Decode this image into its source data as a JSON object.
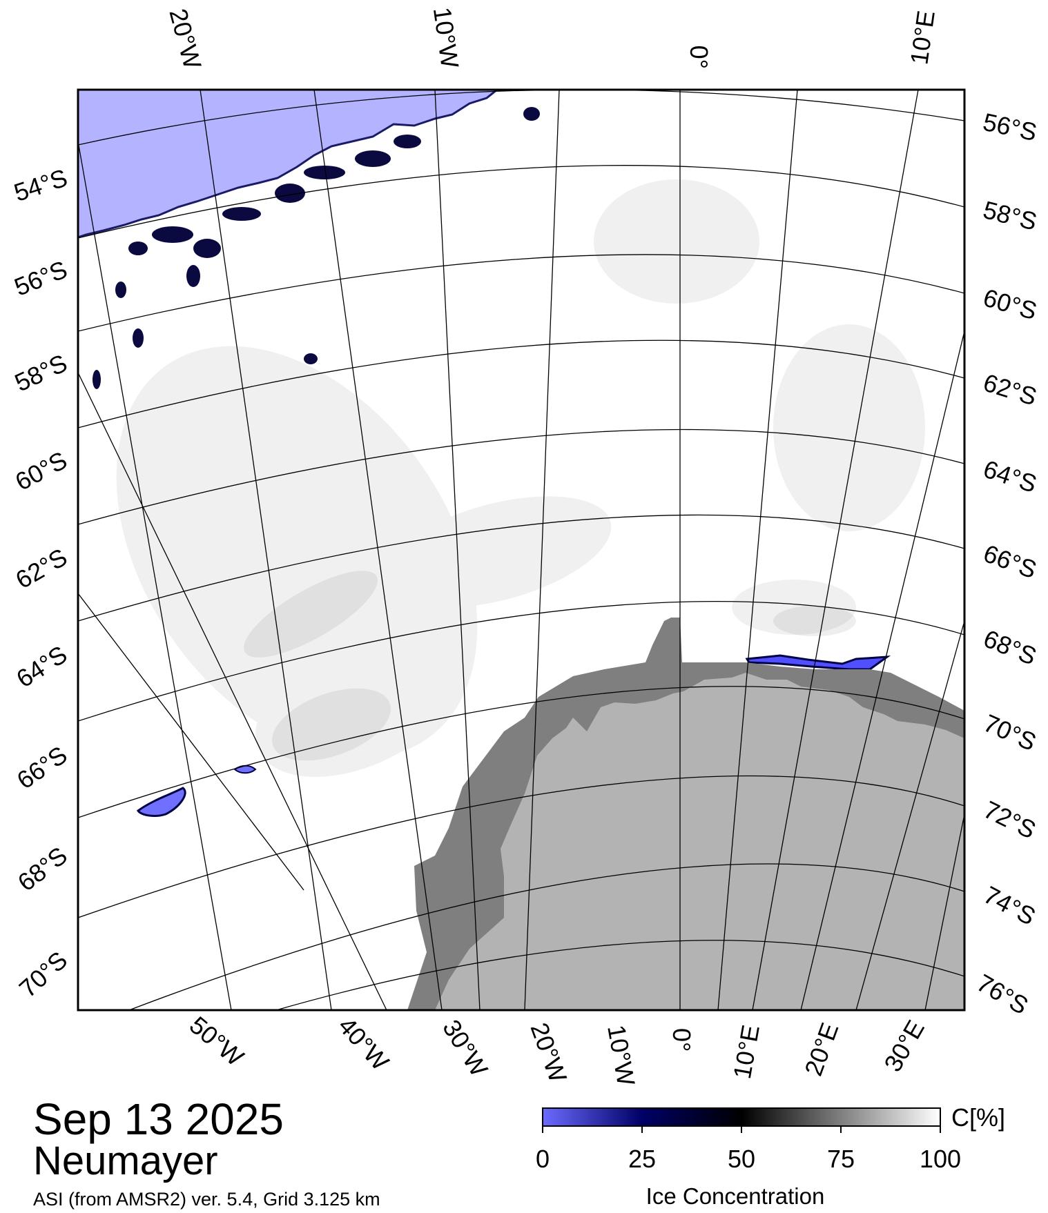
{
  "map": {
    "title_date": "Sep 13 2025",
    "station": "Neumayer",
    "source": "ASI (from AMSR2) ver. 5.4,  Grid 3.125 km",
    "colors": {
      "open_water": "#b3b3ff",
      "land_ice_shelf": "#7f7f7f",
      "continent": "#b3b3b3",
      "sea_ice_full": "#ffffff",
      "frame": "#000000"
    }
  },
  "top_axis": [
    "20°W",
    "10°W",
    "0°",
    "10°E"
  ],
  "bottom_axis": [
    "50°W",
    "40°W",
    "30°W",
    "20°W",
    "10°W",
    "0°",
    "10°E",
    "20°E",
    "30°E"
  ],
  "left_axis": [
    "54°S",
    "56°S",
    "58°S",
    "60°S",
    "62°S",
    "64°S",
    "66°S",
    "68°S",
    "70°S"
  ],
  "right_axis": [
    "56°S",
    "58°S",
    "60°S",
    "62°S",
    "64°S",
    "66°S",
    "68°S",
    "70°S",
    "72°S",
    "74°S",
    "76°S"
  ],
  "colorbar": {
    "unit": "C[%]",
    "ticks": [
      "0",
      "25",
      "50",
      "75",
      "100"
    ],
    "label": "Ice Concentration",
    "stops": [
      "#6b6bff",
      "#000066",
      "#000000",
      "#7f7f7f",
      "#ffffff"
    ]
  }
}
